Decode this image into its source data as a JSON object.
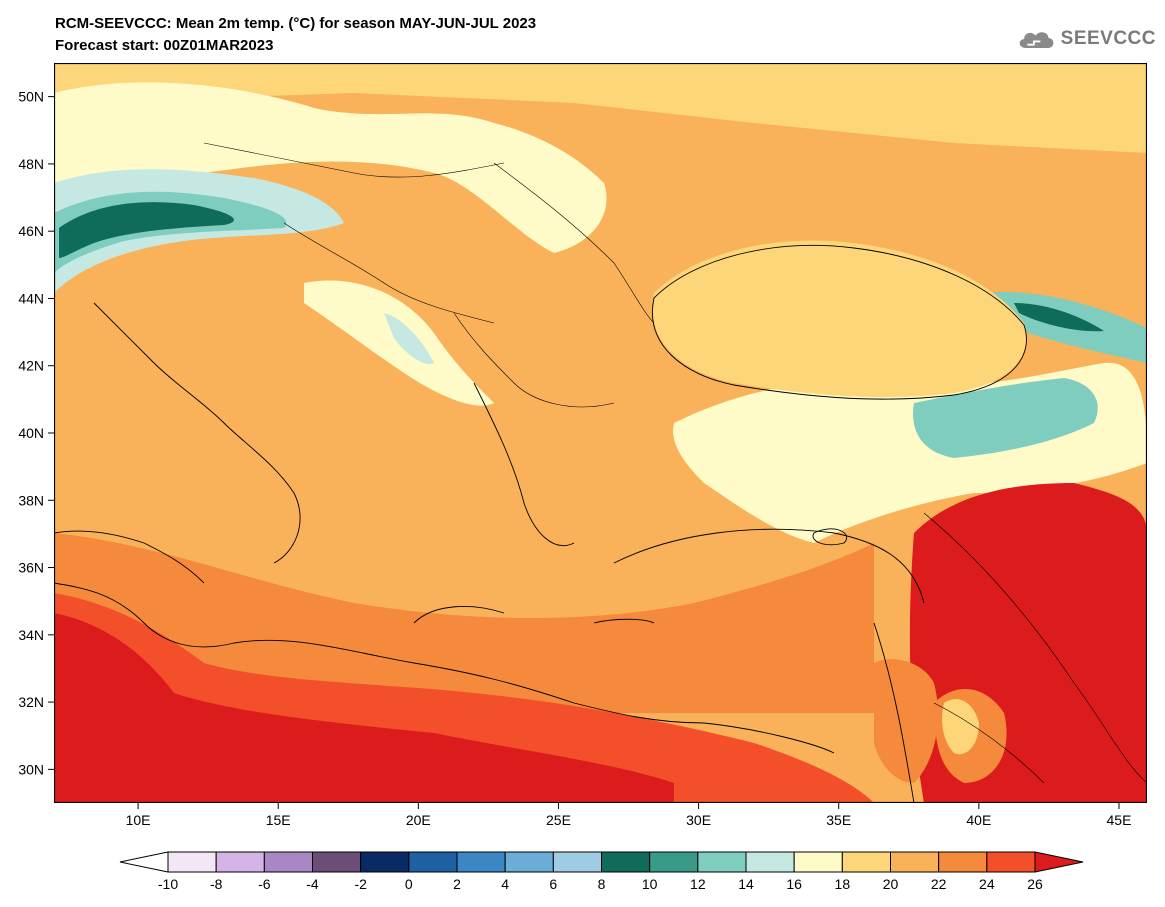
{
  "header": {
    "title": "RCM-SEEVCCC: Mean 2m temp. (°C) for season MAY-JUN-JUL 2023",
    "subtitle": "Forecast start: 00Z01MAR2023"
  },
  "logo": {
    "text": "SEEVCCC",
    "icon": "cloud-icon"
  },
  "map": {
    "variable": "Mean 2m temperature",
    "units": "°C",
    "lon_labels": [
      "10E",
      "15E",
      "20E",
      "25E",
      "30E",
      "35E",
      "40E",
      "45E"
    ],
    "lat_labels": [
      "50N",
      "48N",
      "46N",
      "44N",
      "42N",
      "40N",
      "38N",
      "36N",
      "34N",
      "32N",
      "30N"
    ],
    "lon_range": [
      7,
      46
    ],
    "lat_range": [
      29,
      51
    ]
  },
  "colorbar": {
    "tick_labels": [
      "-10",
      "-8",
      "-6",
      "-4",
      "-2",
      "0",
      "2",
      "4",
      "6",
      "8",
      "10",
      "12",
      "14",
      "16",
      "18",
      "20",
      "22",
      "24",
      "26"
    ],
    "colors": [
      "#f2e6f7",
      "#d6b3e6",
      "#a987c4",
      "#6b4d78",
      "#0a2a66",
      "#1f5fa3",
      "#3a87c4",
      "#6aaed8",
      "#9fcbe4",
      "#0f6b5a",
      "#3a9a8a",
      "#7fcdbf",
      "#c6e8e2",
      "#fffbc8",
      "#fcd679",
      "#f9b15a",
      "#f58a3c",
      "#f24f2a"
    ],
    "under_color": "#ffffff",
    "over_color": "#dc1c1c"
  }
}
